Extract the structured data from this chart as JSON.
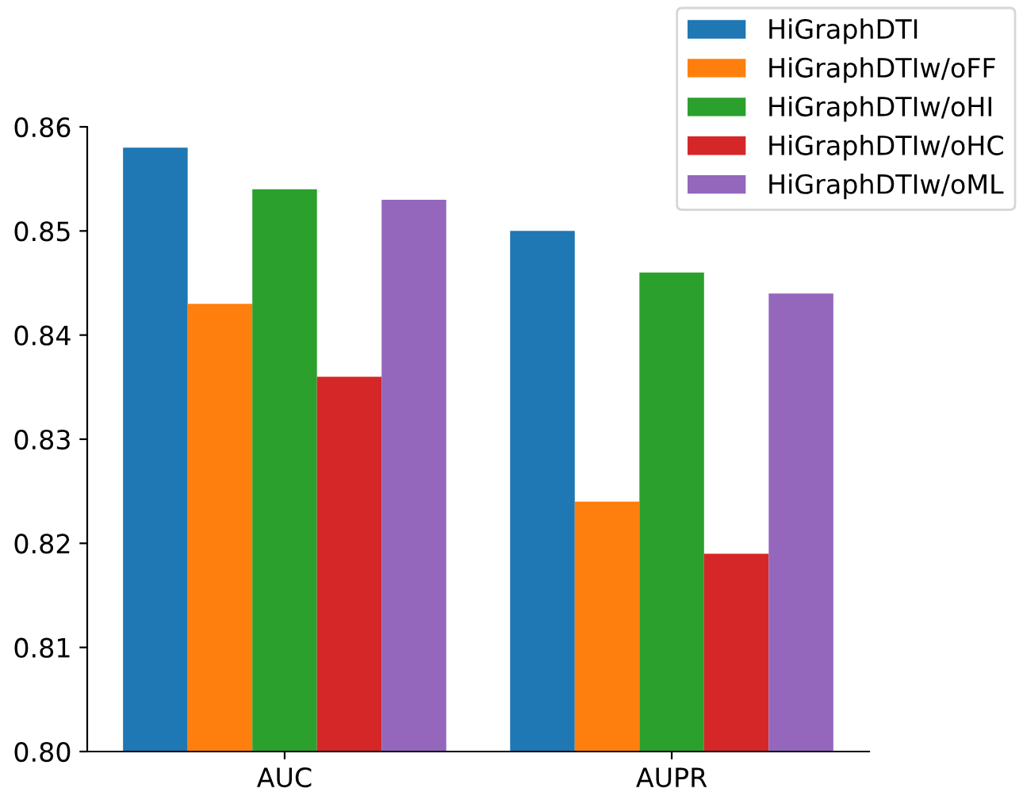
{
  "chart_data": {
    "type": "bar",
    "categories": [
      "AUC",
      "AUPR"
    ],
    "series": [
      {
        "name": "HiGraphDTI",
        "color": "#1f77b4",
        "values": [
          0.858,
          0.85
        ]
      },
      {
        "name": "HiGraphDTIw/oFF",
        "color": "#ff7f0e",
        "values": [
          0.843,
          0.824
        ]
      },
      {
        "name": "HiGraphDTIw/oHI",
        "color": "#2ca02c",
        "values": [
          0.854,
          0.846
        ]
      },
      {
        "name": "HiGraphDTIw/oHC",
        "color": "#d62728",
        "values": [
          0.836,
          0.819
        ]
      },
      {
        "name": "HiGraphDTIw/oML",
        "color": "#9467bd",
        "values": [
          0.853,
          0.844
        ]
      }
    ],
    "ylim": [
      0.8,
      0.86
    ],
    "yticks": [
      {
        "value": 0.8,
        "label": "0.80"
      },
      {
        "value": 0.81,
        "label": "0.81"
      },
      {
        "value": 0.82,
        "label": "0.82"
      },
      {
        "value": 0.83,
        "label": "0.83"
      },
      {
        "value": 0.84,
        "label": "0.84"
      },
      {
        "value": 0.85,
        "label": "0.85"
      },
      {
        "value": 0.86,
        "label": "0.86"
      }
    ],
    "grid": false,
    "legend": "top right"
  }
}
